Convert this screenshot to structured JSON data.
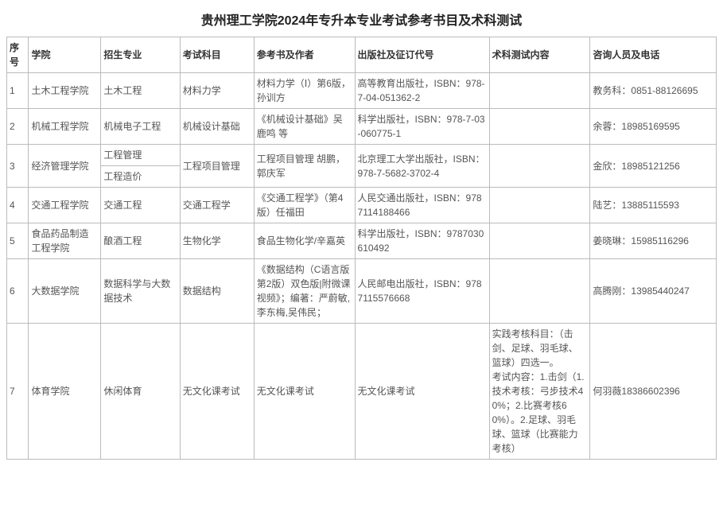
{
  "title": "贵州理工学院2024年专升本专业考试参考书目及术科测试",
  "headers": {
    "seq": "序号",
    "college": "学院",
    "major": "招生专业",
    "subject": "考试科目",
    "reference": "参考书及作者",
    "publisher": "出版社及征订代号",
    "test_content": "术科测试内容",
    "contact": "咨询人员及电话"
  },
  "rows": {
    "r1": {
      "seq": "1",
      "college": "土木工程学院",
      "major": "土木工程",
      "subject": "材料力学",
      "reference": "材料力学（Ⅰ）第6版，孙训方",
      "publisher": "高等教育出版社，ISBN：978-7-04-051362-2",
      "test_content": "",
      "contact": "教务科：0851-88126695"
    },
    "r2": {
      "seq": "2",
      "college": "机械工程学院",
      "major": "机械电子工程",
      "subject": "机械设计基础",
      "reference": "《机械设计基础》吴鹿鸣 等",
      "publisher": "科学出版社，ISBN：978-7-03-060775-1",
      "test_content": "",
      "contact": "余蓉：18985169595"
    },
    "r3": {
      "seq": "3",
      "college": "经济管理学院",
      "major_a": "工程管理",
      "major_b": "工程造价",
      "subject": "工程项目管理",
      "reference": "工程项目管理 胡鹏，郭庆军",
      "publisher": "北京理工大学出版社，ISBN：978-7-5682-3702-4",
      "test_content": "",
      "contact": "金欣：18985121256"
    },
    "r4": {
      "seq": "4",
      "college": "交通工程学院",
      "major": "交通工程",
      "subject": "交通工程学",
      "reference": "《交通工程学》（第4版）任福田",
      "publisher": "人民交通出版社，ISBN：9787114188466",
      "test_content": "",
      "contact": "陆艺：13885115593"
    },
    "r5": {
      "seq": "5",
      "college": "食品药品制造工程学院",
      "major": "酿酒工程",
      "subject": "生物化学",
      "reference": "食品生物化学/辛嘉英",
      "publisher": "科学出版社，ISBN：9787030610492",
      "test_content": "",
      "contact": "姜晓琳：15985116296"
    },
    "r6": {
      "seq": "6",
      "college": "大数据学院",
      "major": "数据科学与大数据技术",
      "subject": "数据结构",
      "reference": "《数据结构（C语言版 第2版）双色版|附微课视频》；编著：严蔚敏,李东梅,吴伟民；",
      "publisher": "人民邮电出版社，ISBN：9787115576668",
      "test_content": "",
      "contact": "高腾刚：13985440247"
    },
    "r7": {
      "seq": "7",
      "college": "体育学院",
      "major": "休闲体育",
      "subject": "无文化课考试",
      "reference": "无文化课考试",
      "publisher": "无文化课考试",
      "test_content": "实践考核科目：（击剑、足球、羽毛球、篮球）四选一。\n考试内容：1.击剑（1.技术考核：弓步技术40%；2.比赛考核60%）。2.足球、羽毛球、篮球（比赛能力考核）",
      "contact": "何羽薇18386602396"
    }
  }
}
